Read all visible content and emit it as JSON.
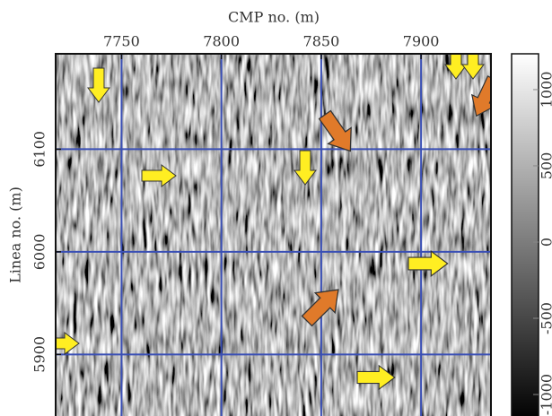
{
  "chart_data": {
    "type": "image",
    "title": "CMP no. (m)",
    "y_label": "Linea no. (m)",
    "xlim": [
      7717,
      7935
    ],
    "xticks": [
      7750,
      7800,
      7850,
      7900
    ],
    "ylim": [
      5840,
      6193
    ],
    "yticks": [
      5900,
      6000,
      6100
    ],
    "grid": true,
    "grid_color": "#3a4fb5",
    "colorbar": {
      "lim": [
        -1141,
        1235
      ],
      "ticks": [
        -1000,
        -500,
        0,
        500,
        1000
      ]
    }
  }
}
